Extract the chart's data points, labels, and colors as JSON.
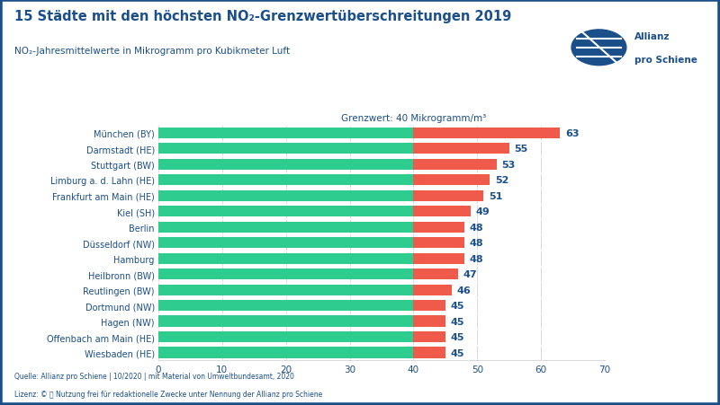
{
  "title": "15 Städte mit den höchsten NO₂-Grenzwertüberschreitungen 2019",
  "subtitle": "NO₂-Jahresmittelwerte in Mikrogramm pro Kubikmeter Luft",
  "threshold_label": "Grenzwert: 40 Mikrogramm/m³",
  "threshold": 40,
  "xlim": [
    0,
    70
  ],
  "xticks": [
    0,
    10,
    20,
    30,
    40,
    50,
    60,
    70
  ],
  "categories": [
    "München (BY)",
    "Darmstadt (HE)",
    "Stuttgart (BW)",
    "Limburg a. d. Lahn (HE)",
    "Frankfurt am Main (HE)",
    "Kiel (SH)",
    "Berlin",
    "Düsseldorf (NW)",
    "Hamburg",
    "Heilbronn (BW)",
    "Reutlingen (BW)",
    "Dortmund (NW)",
    "Hagen (NW)",
    "Offenbach am Main (HE)",
    "Wiesbaden (HE)"
  ],
  "values": [
    63,
    55,
    53,
    52,
    51,
    49,
    48,
    48,
    48,
    47,
    46,
    45,
    45,
    45,
    45
  ],
  "green_color": "#2ECC8E",
  "red_color": "#F05A4A",
  "blue_color": "#1B4F8A",
  "border_color": "#1B4F8A",
  "bg_color": "#FFFFFF",
  "source_text": "Quelle: Allianz pro Schiene | 10/2020 | mit Material von Umweltbundesamt, 2020",
  "license_text": "Lizenz: © ⓘ Nutzung frei für redaktionelle Zwecke unter Nennung der Allianz pro Schiene"
}
